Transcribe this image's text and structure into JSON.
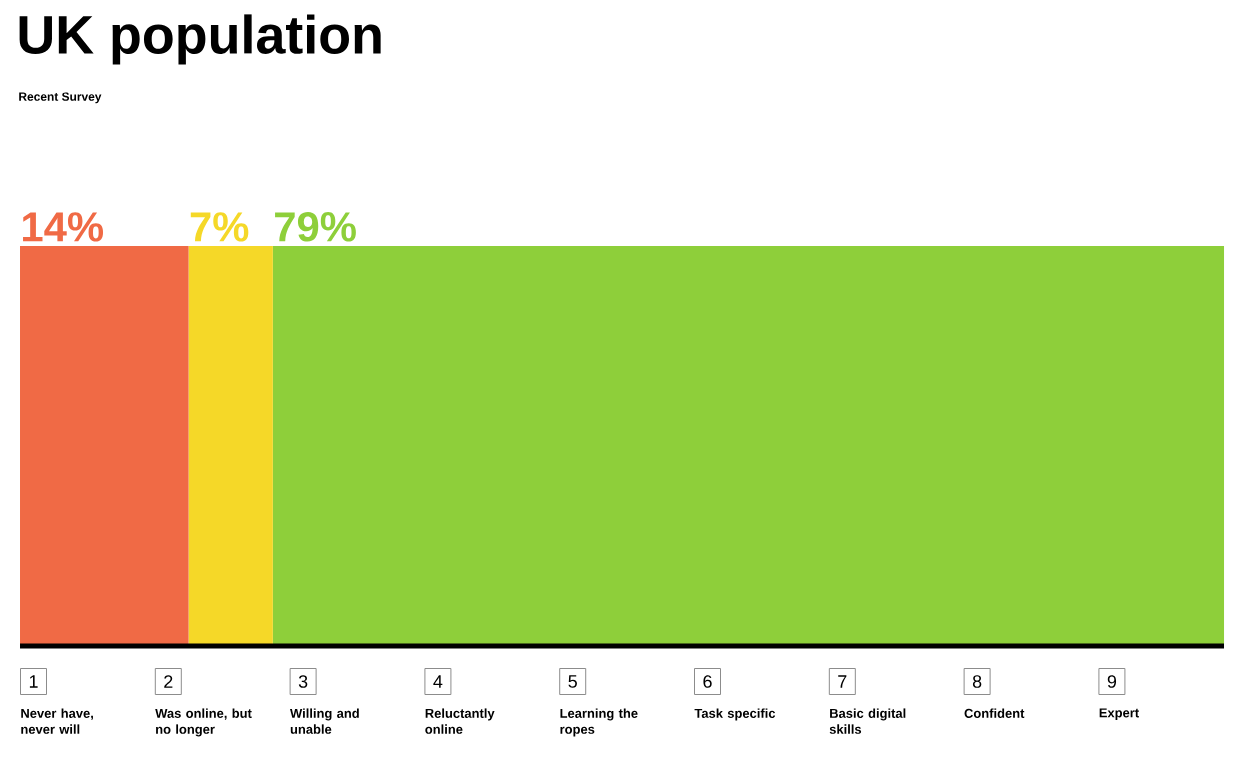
{
  "chart_data": {
    "type": "bar",
    "orientation": "horizontal",
    "stacked": true,
    "title": "UK population",
    "subtitle": "Recent Survey",
    "categories": [
      null
    ],
    "tick_labels": false,
    "series": [
      {
        "color": "#f06a45",
        "values": [
          14
        ],
        "value_labels": [
          "14%"
        ]
      },
      {
        "color": "#f5d828",
        "values": [
          7
        ],
        "value_labels": [
          "7%"
        ]
      },
      {
        "color": "#8ecf3a",
        "values": [
          79
        ],
        "value_labels": [
          "79%"
        ]
      }
    ],
    "annotations": [
      "1",
      "Never have, never will",
      "2",
      "Was online, but no longer",
      "3",
      "Willing and unable",
      "4",
      "Reluctantly online",
      "5",
      "Learning the ropes",
      "6",
      "Task specific",
      "7",
      "Basic digital skills",
      "8",
      "Confident",
      "9",
      "Expert"
    ]
  }
}
